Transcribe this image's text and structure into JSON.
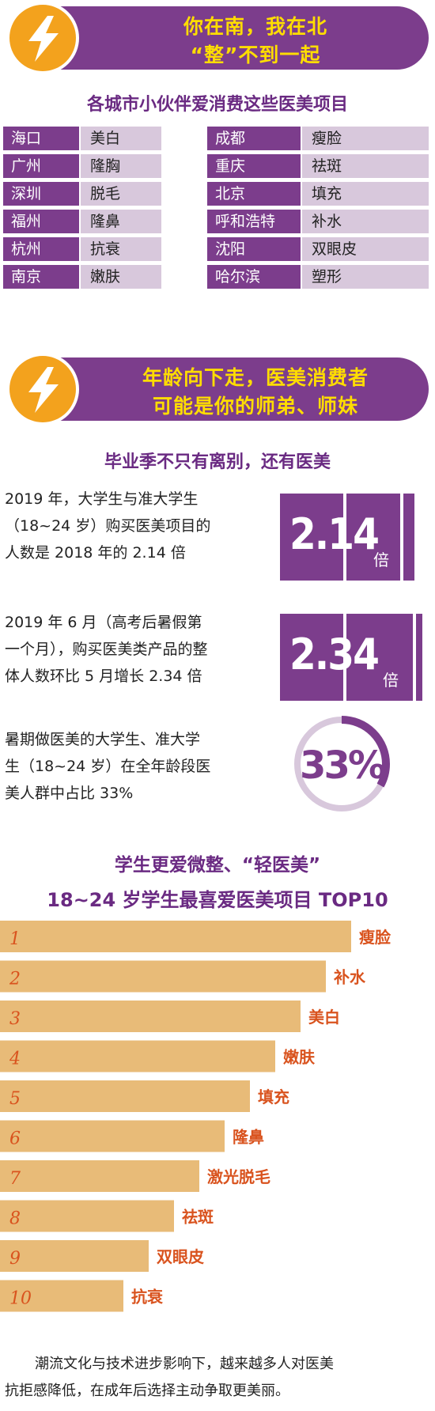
{
  "banner1": {
    "line1": "你在南，我在北",
    "line2": "“整”不到一起"
  },
  "city_section": {
    "title": "各城市小伙伴爱消费这些医美项目",
    "left": [
      {
        "city": "海口",
        "item": "美白"
      },
      {
        "city": "广州",
        "item": "隆胸"
      },
      {
        "city": "深圳",
        "item": "脱毛"
      },
      {
        "city": "福州",
        "item": "隆鼻"
      },
      {
        "city": "杭州",
        "item": "抗衰"
      },
      {
        "city": "南京",
        "item": "嫩肤"
      }
    ],
    "right": [
      {
        "city": "成都",
        "item": "瘦脸"
      },
      {
        "city": "重庆",
        "item": "祛斑"
      },
      {
        "city": "北京",
        "item": "填充"
      },
      {
        "city": "呼和浩特",
        "item": "补水"
      },
      {
        "city": "沈阳",
        "item": "双眼皮"
      },
      {
        "city": "哈尔滨",
        "item": "塑形"
      }
    ]
  },
  "banner2": {
    "line1": "年龄向下走，医美消费者",
    "line2": "可能是你的师弟、师妹"
  },
  "graduation": {
    "title": "毕业季不只有离别，还有医美",
    "stat1": {
      "lines": [
        "2019 年，大学生与准大学生",
        "（18~24 岁）购买医美项目的",
        "人数是 2018 年的 2.14 倍"
      ],
      "value": "2.14",
      "unit": "倍"
    },
    "stat2": {
      "lines": [
        "2019 年 6 月（高考后暑假第",
        "一个月），购买医美类产品的整",
        "体人数环比 5 月增长 2.34 倍"
      ],
      "value": "2.34",
      "unit": "倍"
    },
    "stat3": {
      "lines": [
        "暑期做医美的大学生、准大学",
        "生（18~24 岁）在全年龄段医",
        "美人群中占比 33%"
      ],
      "value": "33%",
      "fraction": 0.33
    }
  },
  "top10": {
    "title1": "学生更爱微整、“轻医美”",
    "title2": "18~24 岁学生最喜爱医美项目 TOP10"
  },
  "chart_data": {
    "type": "bar",
    "orientation": "horizontal",
    "categories": [
      "1",
      "2",
      "3",
      "4",
      "5",
      "6",
      "7",
      "8",
      "9",
      "10"
    ],
    "labels": [
      "瘦脸",
      "补水",
      "美白",
      "嫩肤",
      "填充",
      "隆鼻",
      "激光脱毛",
      "祛斑",
      "双眼皮",
      "抗衰"
    ],
    "values": [
      10,
      9,
      8,
      7,
      6,
      5,
      4,
      3,
      2,
      1
    ],
    "title": "18~24 岁学生最喜爱医美项目 TOP10",
    "bar_color": "#e8bb78",
    "label_color": "#d9531e"
  },
  "footer": {
    "lines": [
      "潮流文化与技术进步影响下，越来越多人对医美",
      "抗拒感降低，在成年后选择主动争取更美丽。"
    ]
  },
  "colors": {
    "purple": "#7c3d8c",
    "light_purple": "#d8c8dc",
    "orange": "#f3a21d",
    "yellow": "#ffdd00"
  }
}
